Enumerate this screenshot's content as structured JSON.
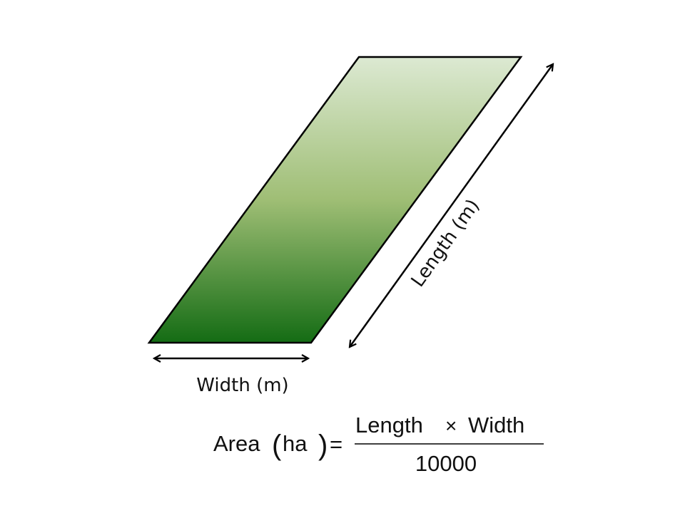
{
  "colors": {
    "gradient_top": "#DCE9D2",
    "gradient_mid": "#9FBE75",
    "gradient_bottom": "#146C14",
    "stroke": "#000000"
  },
  "labels": {
    "width": "Width (m)",
    "length": "Length (m)"
  },
  "formula": {
    "lhs_word": "Area",
    "lhs_unit": "ha",
    "open_paren": "(",
    "close_paren": ")",
    "equals": "=",
    "numerator_left": "Length",
    "times": "×",
    "numerator_right": "Width",
    "denominator": "10000"
  }
}
